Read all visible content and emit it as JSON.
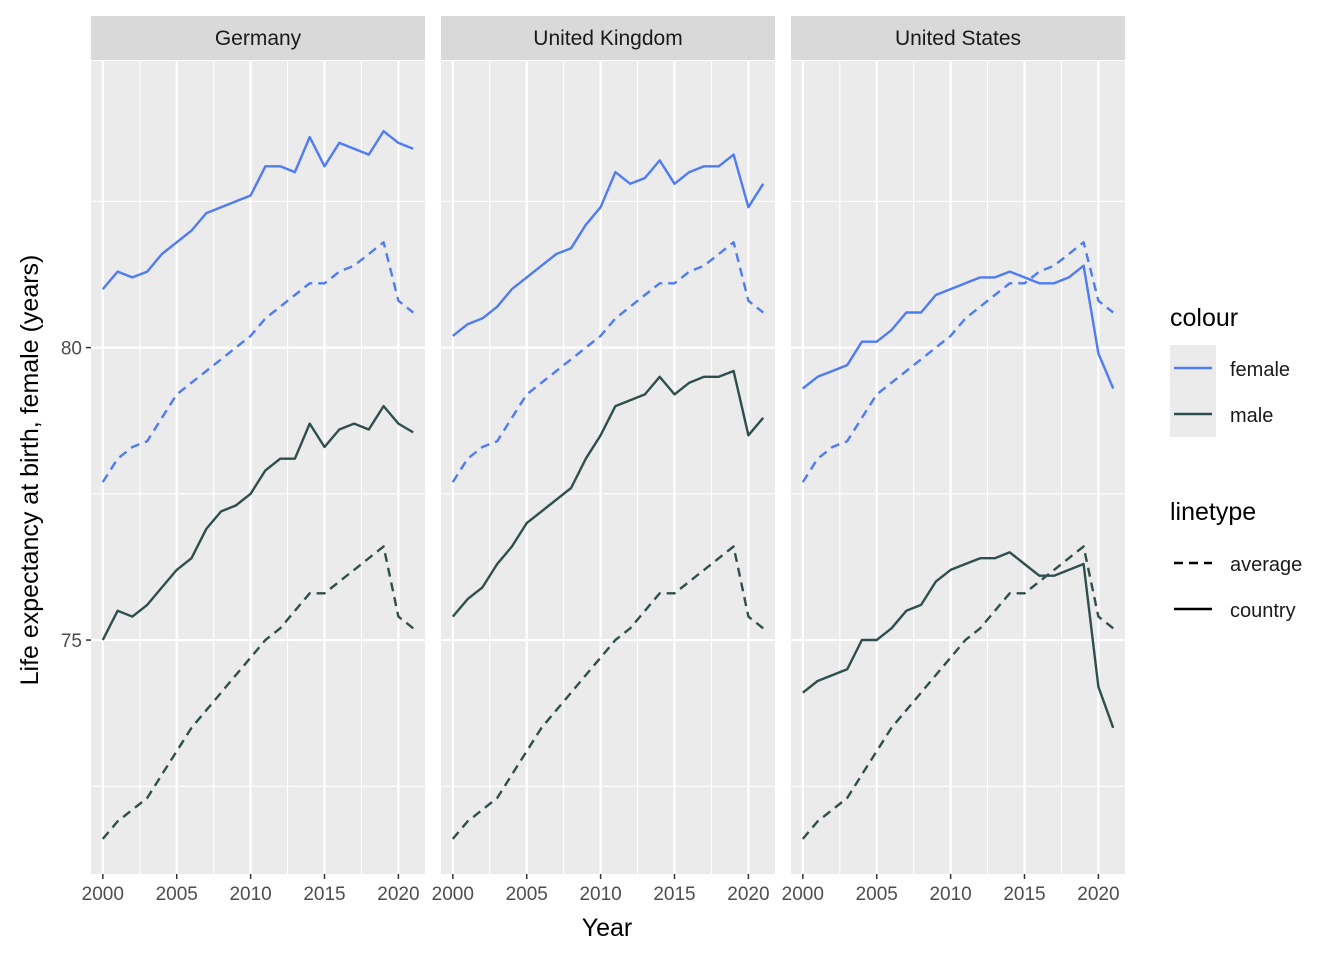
{
  "colors": {
    "female": "#4f7bf3",
    "male": "#2f4f4f",
    "panel_bg": "#ebebeb",
    "strip_bg": "#d9d9d9",
    "grid": "#ffffff",
    "tick": "#333333"
  },
  "chart_data": {
    "type": "line",
    "facet_by": "country",
    "xlabel": "Year",
    "ylabel": "Life expectancy at birth, female (years)",
    "xlim": [
      1999.2,
      2021.8
    ],
    "ylim": [
      71.0,
      84.9
    ],
    "x_ticks": [
      2000,
      2005,
      2010,
      2015,
      2020
    ],
    "x_tick_labels": [
      "2000",
      "2005",
      "2010",
      "2015",
      "2020"
    ],
    "y_ticks": [
      75,
      80
    ],
    "y_tick_labels": [
      "75",
      "80"
    ],
    "legend_position": "right",
    "legend": {
      "colour": {
        "title": "colour",
        "entries": [
          "female",
          "male"
        ]
      },
      "linetype": {
        "title": "linetype",
        "entries": [
          "average",
          "country"
        ]
      }
    },
    "x": [
      2000,
      2001,
      2002,
      2003,
      2004,
      2005,
      2006,
      2007,
      2008,
      2009,
      2010,
      2011,
      2012,
      2013,
      2014,
      2015,
      2016,
      2017,
      2018,
      2019,
      2020,
      2021
    ],
    "average": {
      "female": [
        77.7,
        78.1,
        78.3,
        78.4,
        78.8,
        79.2,
        79.4,
        79.6,
        79.8,
        80.0,
        80.2,
        80.5,
        80.7,
        80.9,
        81.1,
        81.1,
        81.3,
        81.4,
        81.6,
        81.8,
        80.8,
        80.6
      ],
      "male": [
        71.6,
        71.9,
        72.1,
        72.3,
        72.7,
        73.1,
        73.5,
        73.8,
        74.1,
        74.4,
        74.7,
        75.0,
        75.2,
        75.5,
        75.8,
        75.8,
        76.0,
        76.2,
        76.4,
        76.6,
        75.4,
        75.2
      ]
    },
    "panels": [
      {
        "country": "Germany",
        "female": [
          81.0,
          81.3,
          81.2,
          81.3,
          81.6,
          81.8,
          82.0,
          82.3,
          82.4,
          82.5,
          82.6,
          83.1,
          83.1,
          83.0,
          83.6,
          83.1,
          83.5,
          83.4,
          83.3,
          83.7,
          83.5,
          83.4
        ],
        "male": [
          75.0,
          75.5,
          75.4,
          75.6,
          75.9,
          76.2,
          76.4,
          76.9,
          77.2,
          77.3,
          77.5,
          77.9,
          78.1,
          78.1,
          78.7,
          78.3,
          78.6,
          78.7,
          78.6,
          79.0,
          78.7,
          78.55
        ]
      },
      {
        "country": "United Kingdom",
        "female": [
          80.2,
          80.4,
          80.5,
          80.7,
          81.0,
          81.2,
          81.4,
          81.6,
          81.7,
          82.1,
          82.4,
          83.0,
          82.8,
          82.9,
          83.2,
          82.8,
          83.0,
          83.1,
          83.1,
          83.3,
          82.4,
          82.8
        ],
        "male": [
          75.4,
          75.7,
          75.9,
          76.3,
          76.6,
          77.0,
          77.2,
          77.4,
          77.6,
          78.1,
          78.5,
          79.0,
          79.1,
          79.2,
          79.5,
          79.2,
          79.4,
          79.5,
          79.5,
          79.6,
          78.5,
          78.8
        ]
      },
      {
        "country": "United States",
        "female": [
          79.3,
          79.5,
          79.6,
          79.7,
          80.1,
          80.1,
          80.3,
          80.6,
          80.6,
          80.9,
          81.0,
          81.1,
          81.2,
          81.2,
          81.3,
          81.2,
          81.1,
          81.1,
          81.2,
          81.4,
          79.9,
          79.3
        ],
        "male": [
          74.1,
          74.3,
          74.4,
          74.5,
          75.0,
          75.0,
          75.2,
          75.5,
          75.6,
          76.0,
          76.2,
          76.3,
          76.4,
          76.4,
          76.5,
          76.3,
          76.1,
          76.1,
          76.2,
          76.3,
          74.2,
          73.5
        ]
      }
    ]
  }
}
